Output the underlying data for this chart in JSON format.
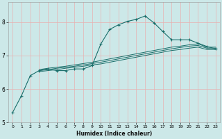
{
  "title": "",
  "xlabel": "Humidex (Indice chaleur)",
  "bg_color": "#cce8e8",
  "grid_color": "#e8b0b0",
  "line_color": "#1a6e6a",
  "xlim": [
    -0.5,
    23.5
  ],
  "ylim": [
    5.0,
    8.6
  ],
  "yticks": [
    5,
    6,
    7,
    8
  ],
  "xticks": [
    0,
    1,
    2,
    3,
    4,
    5,
    6,
    7,
    8,
    9,
    10,
    11,
    12,
    13,
    14,
    15,
    16,
    17,
    18,
    19,
    20,
    21,
    22,
    23
  ],
  "series0_x": [
    0,
    1,
    2,
    3,
    4,
    5,
    6,
    7,
    8,
    9,
    10,
    11,
    12,
    13,
    14,
    15,
    16,
    17,
    18,
    19,
    20,
    21,
    22,
    23
  ],
  "series0_y": [
    5.3,
    5.8,
    6.4,
    6.55,
    6.6,
    6.55,
    6.55,
    6.6,
    6.6,
    6.7,
    7.35,
    7.78,
    7.92,
    8.02,
    8.08,
    8.18,
    7.98,
    7.72,
    7.47,
    7.47,
    7.47,
    7.37,
    7.27,
    7.2
  ],
  "linear_x": [
    3,
    4,
    5,
    6,
    7,
    8,
    9,
    10,
    11,
    12,
    13,
    14,
    15,
    16,
    17,
    18,
    19,
    20,
    21,
    22,
    23
  ],
  "linear1_y": [
    6.52,
    6.55,
    6.58,
    6.62,
    6.65,
    6.68,
    6.72,
    6.75,
    6.8,
    6.85,
    6.9,
    6.95,
    7.0,
    7.05,
    7.1,
    7.15,
    7.18,
    7.22,
    7.25,
    7.18,
    7.18
  ],
  "linear2_y": [
    6.55,
    6.58,
    6.62,
    6.65,
    6.68,
    6.72,
    6.76,
    6.8,
    6.85,
    6.9,
    6.95,
    7.0,
    7.05,
    7.1,
    7.15,
    7.2,
    7.24,
    7.28,
    7.3,
    7.22,
    7.22
  ],
  "linear3_y": [
    6.58,
    6.62,
    6.65,
    6.68,
    6.72,
    6.76,
    6.8,
    6.85,
    6.9,
    6.95,
    7.0,
    7.05,
    7.1,
    7.15,
    7.2,
    7.25,
    7.28,
    7.32,
    7.35,
    7.25,
    7.25
  ]
}
